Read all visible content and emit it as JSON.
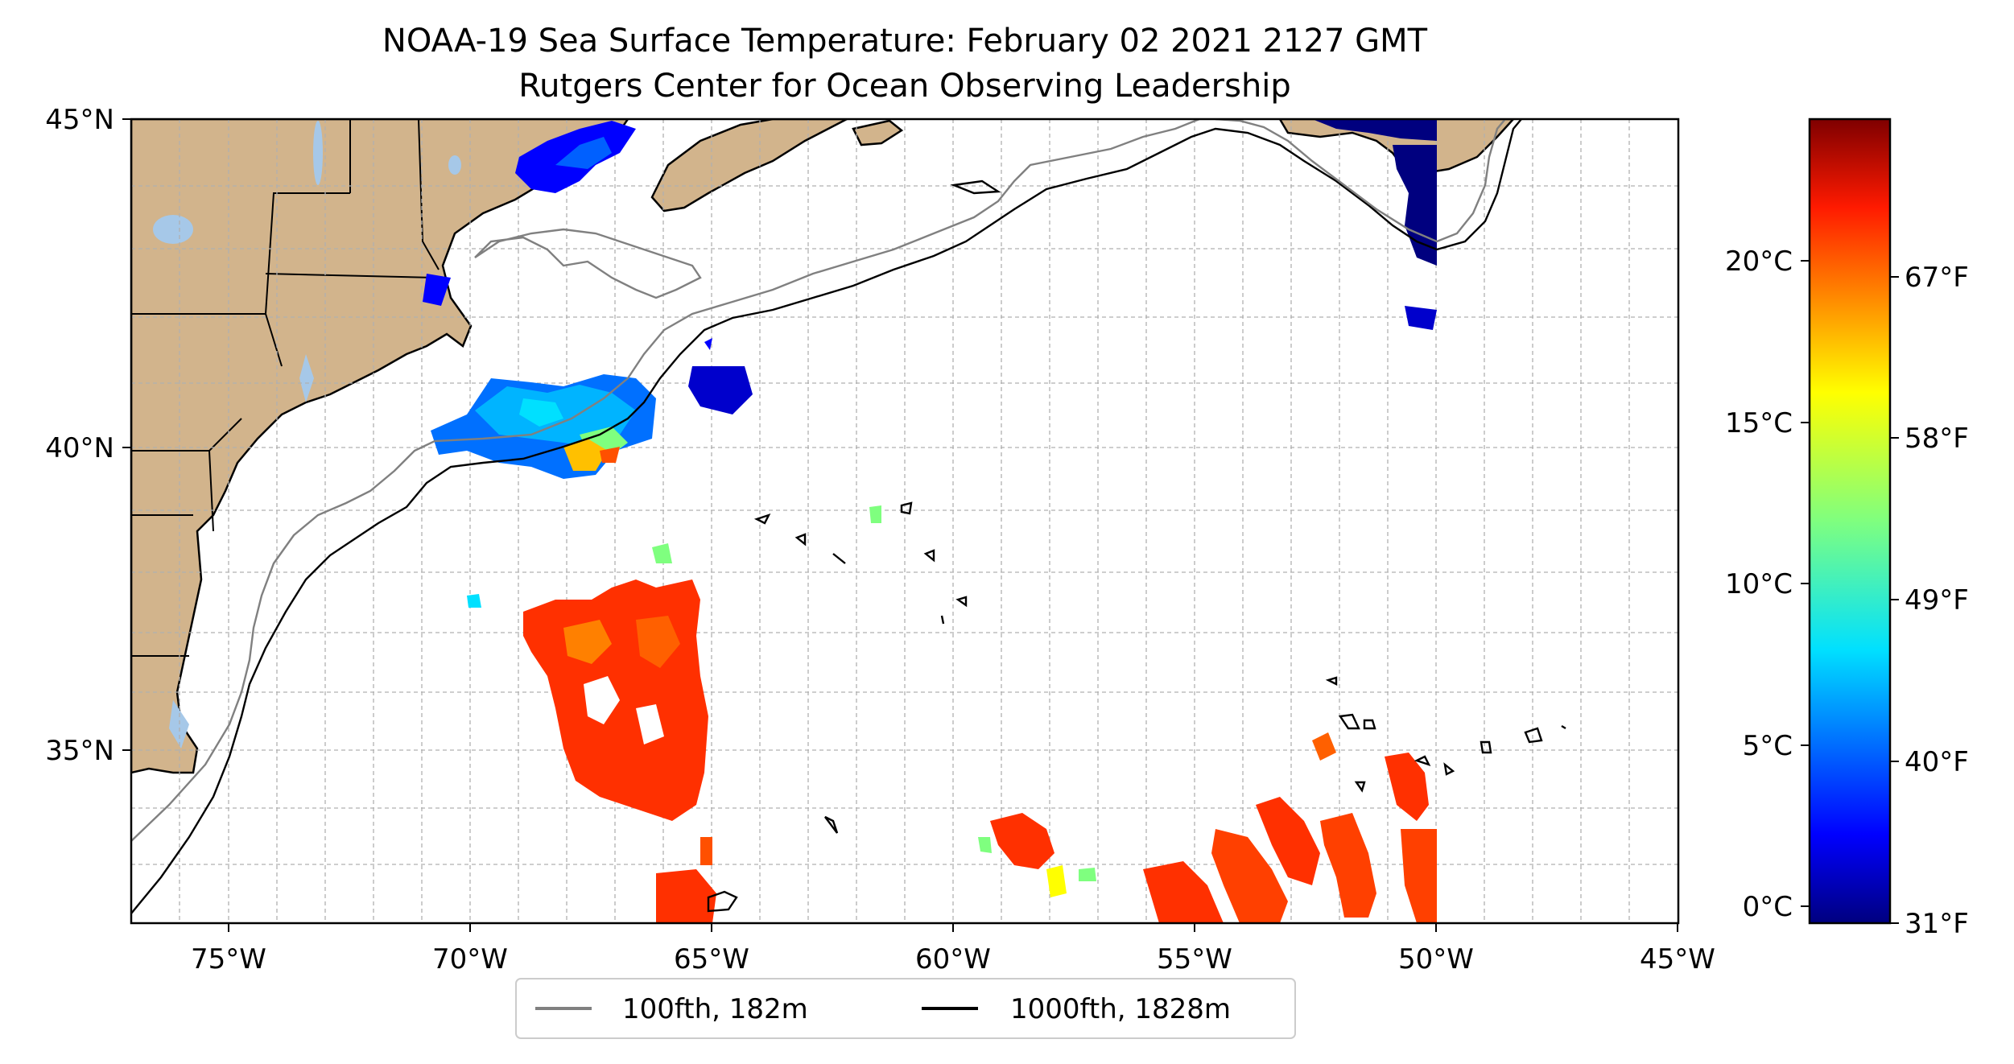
{
  "title": {
    "line1": "NOAA-19 Sea Surface Temperature: February 02 2021 2127 GMT",
    "line2": "Rutgers Center for Ocean Observing Leadership"
  },
  "map": {
    "lon_range": [
      -77,
      -45
    ],
    "lat_range": [
      32.2,
      45
    ],
    "lon_ticks": [
      "75°W",
      "70°W",
      "65°W",
      "60°W",
      "55°W",
      "50°W",
      "45°W"
    ],
    "lat_ticks": [
      "45°N",
      "40°N",
      "35°N"
    ],
    "grid": true,
    "land_color": "#d2b48c",
    "water_color": "#a6c8e8"
  },
  "legend": {
    "items": [
      {
        "label": "100fth, 182m",
        "color": "#808080"
      },
      {
        "label": "1000fth, 1828m",
        "color": "#000000"
      }
    ],
    "placement": "bottom-center"
  },
  "colorbar": {
    "colormap": "jet",
    "celsius_ticks": [
      "0°C",
      "5°C",
      "10°C",
      "15°C",
      "20°C"
    ],
    "fahrenheit_ticks": [
      "31°F",
      "40°F",
      "49°F",
      "58°F",
      "67°F"
    ],
    "range_c": [
      -0.5,
      24.5
    ]
  }
}
